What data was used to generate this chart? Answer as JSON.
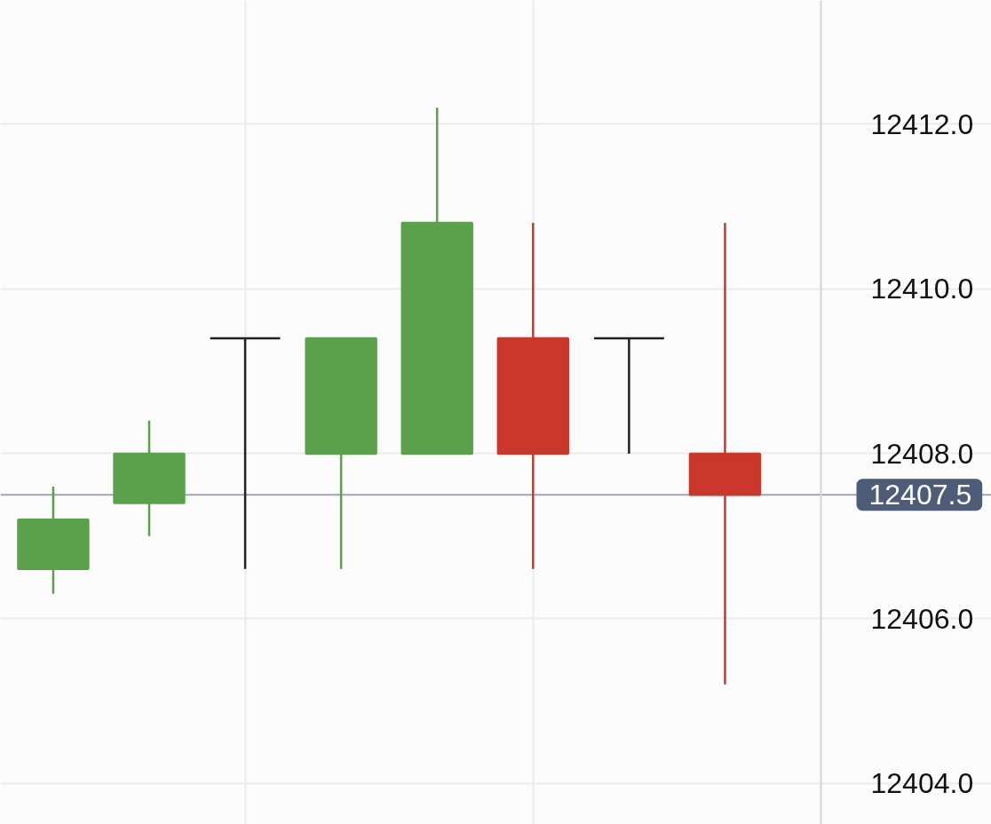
{
  "chart_data": {
    "type": "candlestick",
    "categories": [
      null,
      null,
      null,
      null,
      null,
      null,
      null,
      null
    ],
    "ohlc": [
      [
        12406.6,
        12407.6,
        12406.3,
        12407.2
      ],
      [
        12407.4,
        12408.4,
        12407.0,
        12408.0
      ],
      [
        12409.4,
        12409.4,
        12406.6,
        12409.4
      ],
      [
        12408.0,
        12409.4,
        12406.6,
        12409.4
      ],
      [
        12408.0,
        12412.2,
        12408.0,
        12410.8
      ],
      [
        12409.4,
        12410.8,
        12406.6,
        12408.0
      ],
      [
        12409.4,
        12409.4,
        12408.0,
        12409.4
      ],
      [
        12408.0,
        12410.8,
        12405.2,
        12407.5
      ]
    ],
    "colors": [
      "#5ba14c",
      "#5ba14c",
      "#222222",
      "#5ba14c",
      "#5ba14c",
      "#cc372b",
      "#222222",
      "#cc372b"
    ],
    "ylim": [
      12403.5,
      12413.5
    ],
    "yticks": [
      {
        "value": 12404,
        "label": "12404.0"
      },
      {
        "value": 12406,
        "label": "12406.0"
      },
      {
        "value": 12408,
        "label": "12408.0"
      },
      {
        "value": 12410,
        "label": "12410.0"
      },
      {
        "value": 12412,
        "label": "12412.0"
      }
    ],
    "grid": true,
    "ref_lines": [
      {
        "axis": "y",
        "value": 12407.5,
        "label": "12407.5",
        "color": "#9fa6b3"
      }
    ]
  }
}
